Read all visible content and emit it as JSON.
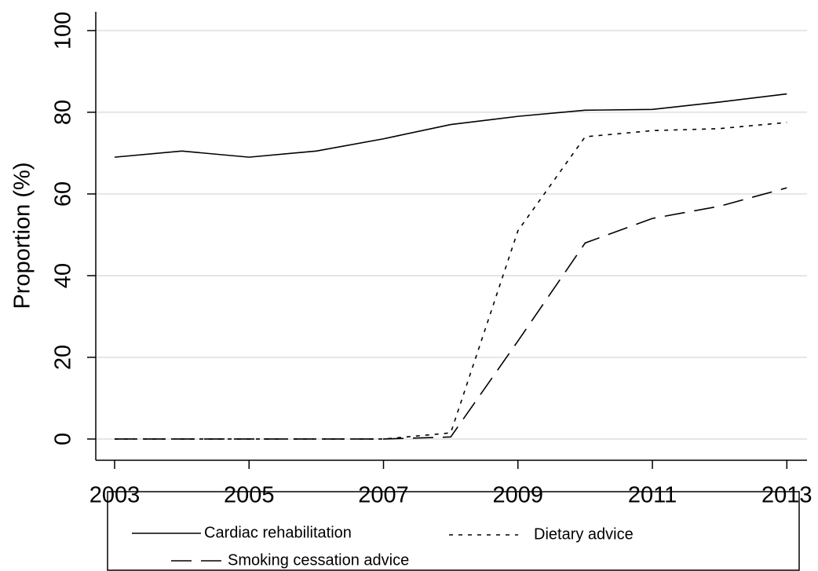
{
  "chart_data": {
    "type": "line",
    "y_label": "Proportion (%)",
    "x": [
      2003,
      2004,
      2005,
      2006,
      2007,
      2008,
      2009,
      2010,
      2011,
      2012,
      2013
    ],
    "series": [
      {
        "name": "Cardiac rehabilitation",
        "color": "#000000",
        "values": [
          69,
          70.5,
          69,
          70.5,
          73.5,
          77,
          79,
          80.5,
          80.7,
          82.5,
          84.5
        ]
      },
      {
        "name": "Dietary advice",
        "color": "#000000",
        "values": [
          0,
          0,
          0,
          0,
          0,
          1.5,
          51,
          74,
          75.5,
          76,
          77.5
        ]
      },
      {
        "name": "Smoking cessation advice",
        "color": "#000000",
        "values": [
          0,
          0,
          0,
          0,
          0,
          0.5,
          24,
          48,
          54,
          57,
          61.5
        ]
      }
    ],
    "xlim": [
      2002.72,
      2013.3
    ],
    "xticks": [
      2003,
      2005,
      2007,
      2009,
      2011,
      2013
    ],
    "ylim": [
      -5.2,
      104.6
    ],
    "yticks": [
      0,
      20,
      40,
      60,
      80,
      100
    ],
    "grid": true
  }
}
